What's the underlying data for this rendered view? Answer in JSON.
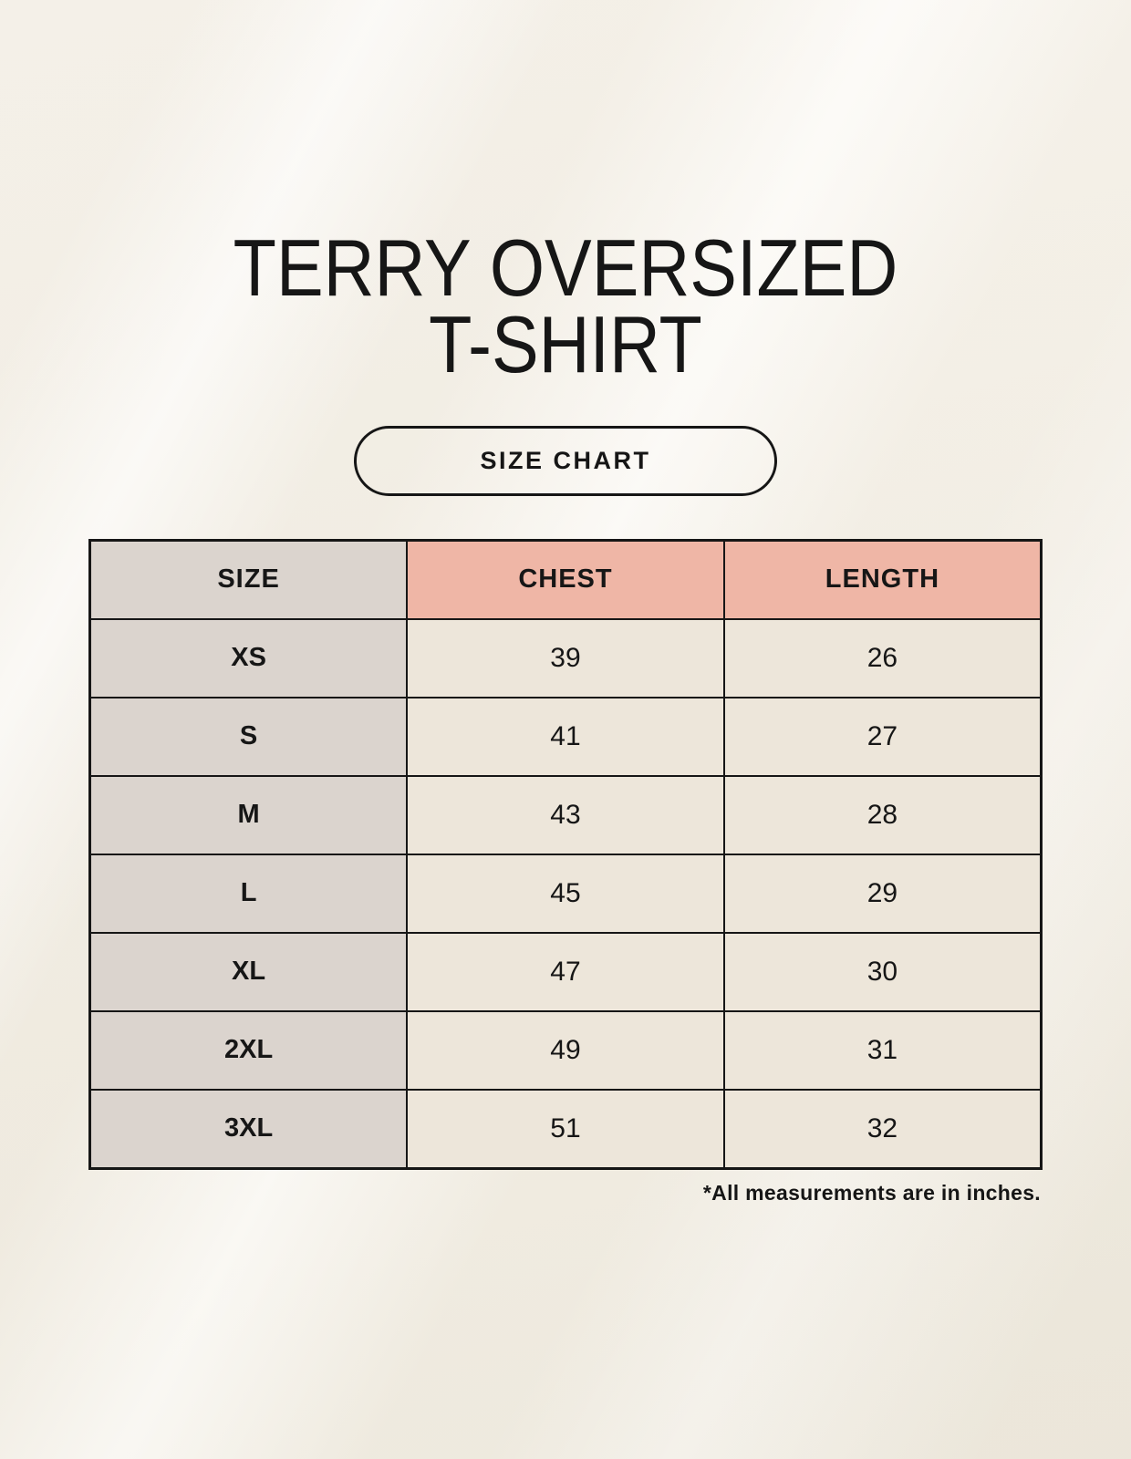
{
  "header": {
    "title_line1": "TERRY OVERSIZED",
    "title_line2": "T-SHIRT",
    "size_chart_label": "SIZE CHART"
  },
  "chart_data": {
    "type": "table",
    "title": "TERRY OVERSIZED T-SHIRT",
    "columns": [
      "SIZE",
      "CHEST",
      "LENGTH"
    ],
    "rows": [
      [
        "XS",
        39,
        26
      ],
      [
        "S",
        41,
        27
      ],
      [
        "M",
        43,
        28
      ],
      [
        "L",
        45,
        29
      ],
      [
        "XL",
        47,
        30
      ],
      [
        "2XL",
        49,
        31
      ],
      [
        "3XL",
        51,
        32
      ]
    ],
    "note": "*All measurements are in inches.",
    "units": "inches"
  },
  "colors": {
    "ink": "#161616",
    "background": "#F5F1E8",
    "accent_salmon": "#EFB6A6",
    "header_gray": "#DBD4CE",
    "cell_cream": "#EDE6DA"
  }
}
